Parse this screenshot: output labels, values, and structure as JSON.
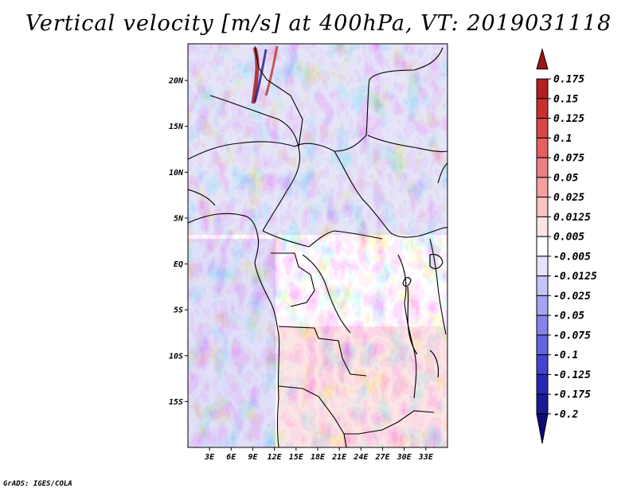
{
  "title": "Vertical velocity [m/s] at 400hPa, VT: 2019031118",
  "credit": "GrADS: IGES/COLA",
  "map": {
    "lon_range_deg": [
      0,
      36
    ],
    "lat_range_deg": [
      -20,
      24
    ],
    "lat_ticks": [
      {
        "label": "20N",
        "lat": 20
      },
      {
        "label": "15N",
        "lat": 15
      },
      {
        "label": "10N",
        "lat": 10
      },
      {
        "label": "5N",
        "lat": 5
      },
      {
        "label": "EQ",
        "lat": 0
      },
      {
        "label": "5S",
        "lat": -5
      },
      {
        "label": "10S",
        "lat": -10
      },
      {
        "label": "15S",
        "lat": -15
      }
    ],
    "lon_ticks": [
      {
        "label": "3E",
        "lon": 3
      },
      {
        "label": "6E",
        "lon": 6
      },
      {
        "label": "9E",
        "lon": 9
      },
      {
        "label": "12E",
        "lon": 12
      },
      {
        "label": "15E",
        "lon": 15
      },
      {
        "label": "18E",
        "lon": 18
      },
      {
        "label": "21E",
        "lon": 21
      },
      {
        "label": "24E",
        "lon": 24
      },
      {
        "label": "27E",
        "lon": 27
      },
      {
        "label": "30E",
        "lon": 30
      },
      {
        "label": "33E",
        "lon": 33
      }
    ]
  },
  "colorbar": {
    "labels": [
      "0.175",
      "0.15",
      "0.125",
      "0.1",
      "0.075",
      "0.05",
      "0.025",
      "0.0125",
      "0.005",
      "-0.005",
      "-0.0125",
      "-0.025",
      "-0.05",
      "-0.075",
      "-0.1",
      "-0.125",
      "-0.175",
      "-0.2"
    ],
    "colors": [
      "#a01414",
      "#b42020",
      "#c83030",
      "#d84848",
      "#e46060",
      "#ec8080",
      "#f4a0a0",
      "#fac4c4",
      "#fde4e4",
      "#ffffff",
      "#e4e4ff",
      "#c4c4f8",
      "#a4a4f0",
      "#8484e8",
      "#6464dc",
      "#4444d0",
      "#2828b4",
      "#1a1a94",
      "#0c0c78"
    ]
  }
}
